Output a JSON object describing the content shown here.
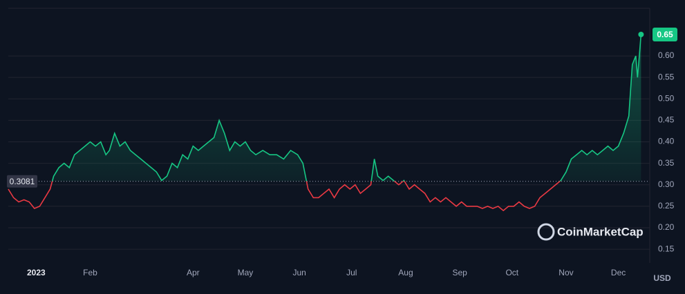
{
  "chart_data": {
    "type": "line",
    "x": [
      -16,
      -13,
      -10,
      -7,
      -4,
      -1,
      2,
      5,
      8,
      10,
      13,
      16,
      19,
      22,
      25,
      28,
      31,
      34,
      37,
      40,
      42,
      45,
      48,
      51,
      54,
      57,
      60,
      63,
      66,
      69,
      72,
      75,
      78,
      81,
      84,
      87,
      90,
      93,
      96,
      99,
      102,
      105,
      108,
      111,
      114,
      117,
      120,
      123,
      126,
      130,
      134,
      138,
      142,
      146,
      150,
      153,
      156,
      159,
      162,
      165,
      168,
      171,
      174,
      177,
      180,
      183,
      186,
      189,
      192,
      194,
      196,
      199,
      202,
      205,
      208,
      211,
      214,
      217,
      220,
      223,
      226,
      229,
      232,
      235,
      238,
      241,
      244,
      247,
      250,
      253,
      256,
      259,
      262,
      265,
      268,
      271,
      274,
      277,
      280,
      283,
      286,
      289,
      292,
      295,
      298,
      301,
      304,
      307,
      310,
      313,
      316,
      319,
      322,
      325,
      328,
      331,
      334,
      337,
      340,
      342,
      344,
      345,
      346,
      347
    ],
    "values": [
      0.29,
      0.27,
      0.26,
      0.265,
      0.26,
      0.245,
      0.25,
      0.27,
      0.29,
      0.32,
      0.34,
      0.35,
      0.34,
      0.37,
      0.38,
      0.39,
      0.4,
      0.39,
      0.4,
      0.37,
      0.38,
      0.42,
      0.39,
      0.4,
      0.38,
      0.37,
      0.36,
      0.35,
      0.34,
      0.33,
      0.31,
      0.32,
      0.35,
      0.34,
      0.37,
      0.36,
      0.39,
      0.38,
      0.39,
      0.4,
      0.41,
      0.45,
      0.42,
      0.38,
      0.4,
      0.39,
      0.4,
      0.38,
      0.37,
      0.38,
      0.37,
      0.37,
      0.36,
      0.38,
      0.37,
      0.35,
      0.29,
      0.27,
      0.27,
      0.28,
      0.29,
      0.27,
      0.29,
      0.3,
      0.29,
      0.3,
      0.28,
      0.29,
      0.3,
      0.36,
      0.32,
      0.31,
      0.32,
      0.31,
      0.3,
      0.31,
      0.29,
      0.3,
      0.29,
      0.28,
      0.26,
      0.27,
      0.26,
      0.27,
      0.26,
      0.25,
      0.26,
      0.25,
      0.25,
      0.25,
      0.245,
      0.25,
      0.245,
      0.25,
      0.24,
      0.25,
      0.25,
      0.26,
      0.25,
      0.245,
      0.25,
      0.27,
      0.28,
      0.29,
      0.3,
      0.31,
      0.33,
      0.36,
      0.37,
      0.38,
      0.37,
      0.38,
      0.37,
      0.38,
      0.39,
      0.38,
      0.39,
      0.42,
      0.46,
      0.58,
      0.6,
      0.55,
      0.6,
      0.65
    ],
    "color_up": "#16c784",
    "color_down": "#ea3943",
    "xlim": [
      -16,
      352
    ],
    "xticks": [
      {
        "value": 0,
        "label": "2023"
      },
      {
        "value": 31,
        "label": "Feb"
      },
      {
        "value": 90,
        "label": "Apr"
      },
      {
        "value": 120,
        "label": "May"
      },
      {
        "value": 151,
        "label": "Jun"
      },
      {
        "value": 181,
        "label": "Jul"
      },
      {
        "value": 212,
        "label": "Aug"
      },
      {
        "value": 243,
        "label": "Sep"
      },
      {
        "value": 273,
        "label": "Oct"
      },
      {
        "value": 304,
        "label": "Nov"
      },
      {
        "value": 334,
        "label": "Dec"
      }
    ],
    "ylim": [
      0.118,
      0.711
    ],
    "yticks": [
      0.15,
      {
        "value": 0.2,
        "label": "0.20"
      },
      0.25,
      {
        "value": 0.3,
        "label": "0.30"
      },
      0.35,
      {
        "value": 0.4,
        "label": "0.40"
      },
      0.45,
      {
        "value": 0.5,
        "label": "0.50"
      },
      0.55,
      {
        "value": 0.6,
        "label": "0.60"
      }
    ],
    "reference": 0.3081,
    "last_price": 0.65,
    "currency": "USD",
    "watermark": "CoinMarketCap",
    "grid": true
  }
}
